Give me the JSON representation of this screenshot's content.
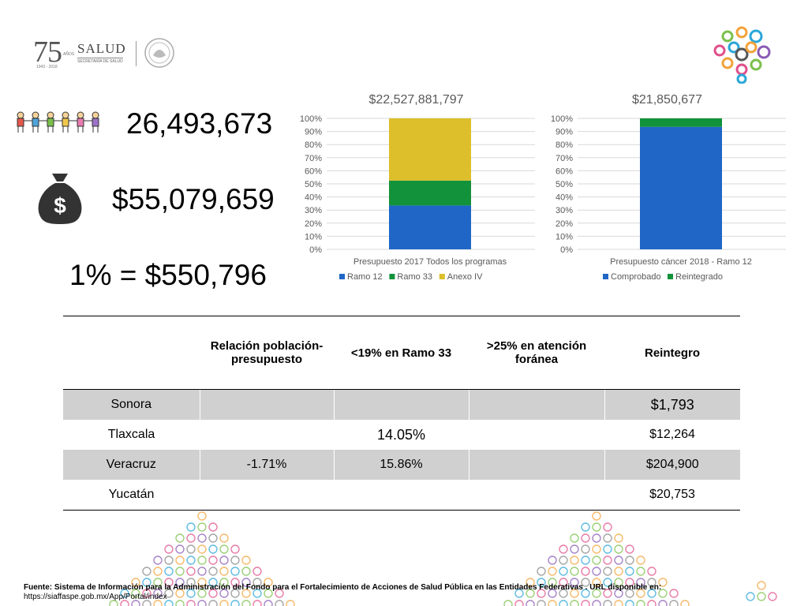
{
  "header": {
    "anniversary_number": "75",
    "anniversary_word": "AÑOS",
    "anniversary_years": "1943 - 2018",
    "ministry_name": "SALUD",
    "ministry_sub": "SECRETARÍA DE SALUD",
    "icons": [
      "people-chain-icon",
      "money-bag-icon",
      "circles-logo-icon",
      "mexico-seal-icon"
    ]
  },
  "stats": {
    "population": "26,493,673",
    "budget": "$55,079,659",
    "one_percent": "1% = $550,796"
  },
  "chart_data": [
    {
      "type": "bar",
      "stacked": "percent",
      "title": "$22,527,881,797",
      "categories": [
        "Presupuesto 2017 Todos los programas"
      ],
      "series": [
        {
          "name": "Ramo 12",
          "values": [
            33.5
          ],
          "color": "#1f66c6"
        },
        {
          "name": "Ramo 33",
          "values": [
            19
          ],
          "color": "#12923a"
        },
        {
          "name": "Anexo IV",
          "values": [
            47.5
          ],
          "color": "#dcbf2a"
        }
      ],
      "ylim": [
        0,
        100
      ],
      "yticks": [
        "0%",
        "10%",
        "20%",
        "30%",
        "40%",
        "50%",
        "60%",
        "70%",
        "80%",
        "90%",
        "100%"
      ],
      "grid": true,
      "legend": "bottom"
    },
    {
      "type": "bar",
      "stacked": "percent",
      "title": "$21,850,677",
      "categories": [
        "Presupuesto cáncer 2018 - Ramo 12"
      ],
      "series": [
        {
          "name": "Comprobado",
          "values": [
            93.5
          ],
          "color": "#1f66c6"
        },
        {
          "name": "Reintegrado",
          "values": [
            6.5
          ],
          "color": "#12923a"
        }
      ],
      "ylim": [
        0,
        100
      ],
      "yticks": [
        "0%",
        "10%",
        "20%",
        "30%",
        "40%",
        "50%",
        "60%",
        "70%",
        "80%",
        "90%",
        "100%"
      ],
      "grid": true,
      "legend": "bottom"
    }
  ],
  "table": {
    "headers": [
      "",
      "Relación población-presupuesto",
      "<19% en Ramo 33",
      ">25% en atención foránea",
      "Reintegro"
    ],
    "rows": [
      {
        "state": "Sonora",
        "relacion": "",
        "ramo33": "",
        "foranea": "",
        "reintegro": "$1,793"
      },
      {
        "state": "Tlaxcala",
        "relacion": "",
        "ramo33": "14.05%",
        "foranea": "",
        "reintegro": "$12,264"
      },
      {
        "state": "Veracruz",
        "relacion": "-1.71%",
        "ramo33": "15.86%",
        "foranea": "",
        "reintegro": "$204,900"
      },
      {
        "state": "Yucatán",
        "relacion": "",
        "ramo33": "",
        "foranea": "",
        "reintegro": "$20,753"
      }
    ]
  },
  "footer": {
    "source": "Fuente: Sistema de Información para la Administración del Fondo para el Fortalecimiento de Acciones de Salud Pública en las Entidades Federativas . URL disponible en:",
    "url": "https://siaffaspe.gob.mx/App/Portal/index"
  }
}
